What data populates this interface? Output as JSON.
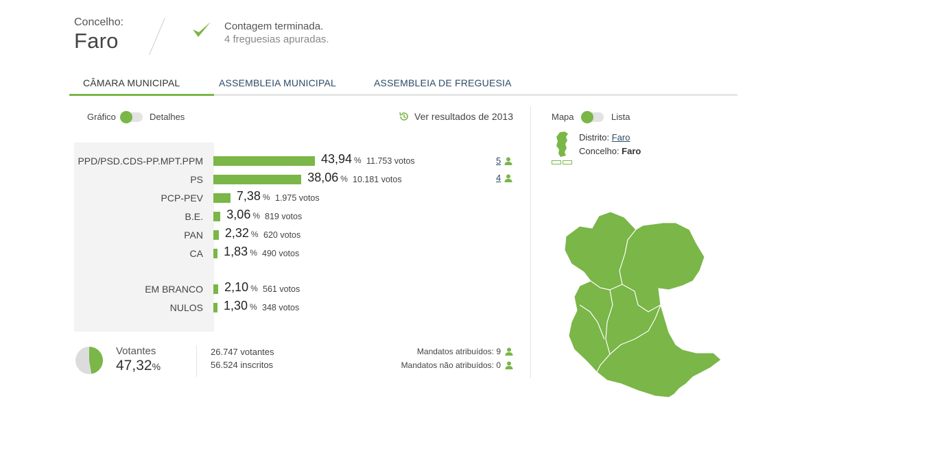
{
  "header": {
    "label": "Concelho:",
    "title": "Faro",
    "status_line1": "Contagem terminada.",
    "status_line2": "4 freguesias apuradas."
  },
  "tabs": [
    {
      "label": "CÂMARA MUNICIPAL",
      "active": true
    },
    {
      "label": "ASSEMBLEIA MUNICIPAL",
      "active": false
    },
    {
      "label": "ASSEMBLEIA DE FREGUESIA",
      "active": false
    }
  ],
  "view_toggle": {
    "left": "Gráfico",
    "right": "Detalhes"
  },
  "history_link": "Ver resultados de 2013",
  "results": [
    {
      "party": "PPD/PSD.CDS-PP.MPT.PPM",
      "pct": "43,94",
      "pct_value": 43.94,
      "votes": "11.753 votos",
      "seats": "5"
    },
    {
      "party": "PS",
      "pct": "38,06",
      "pct_value": 38.06,
      "votes": "10.181 votos",
      "seats": "4"
    },
    {
      "party": "PCP-PEV",
      "pct": "7,38",
      "pct_value": 7.38,
      "votes": "1.975 votos",
      "seats": ""
    },
    {
      "party": "B.E.",
      "pct": "3,06",
      "pct_value": 3.06,
      "votes": "819 votos",
      "seats": ""
    },
    {
      "party": "PAN",
      "pct": "2,32",
      "pct_value": 2.32,
      "votes": "620 votos",
      "seats": ""
    },
    {
      "party": "CA",
      "pct": "1,83",
      "pct_value": 1.83,
      "votes": "490 votos",
      "seats": ""
    },
    {
      "party": "EM BRANCO",
      "pct": "2,10",
      "pct_value": 2.1,
      "votes": "561 votos",
      "seats": ""
    },
    {
      "party": "NULOS",
      "pct": "1,30",
      "pct_value": 1.3,
      "votes": "348 votos",
      "seats": ""
    }
  ],
  "pct_symbol": "%",
  "turnout": {
    "label": "Votantes",
    "pct": "47,32",
    "pct_value": 47.32,
    "voters": "26.747 votantes",
    "registered": "56.524 inscritos"
  },
  "mandates": {
    "assigned": "Mandatos atribuídos: 9",
    "unassigned": "Mandatos não atribuídos: 0"
  },
  "map_toggle": {
    "left": "Mapa",
    "right": "Lista"
  },
  "location": {
    "district_label": "Distrito:",
    "district": "Faro",
    "municipality_label": "Concelho:",
    "municipality": "Faro"
  },
  "colors": {
    "accent": "#7ab648",
    "link": "#2b4a66",
    "panel_bg": "#f3f3f3"
  },
  "icons": {
    "status": "check-icon",
    "seats": "person-icon",
    "history": "history-icon"
  }
}
